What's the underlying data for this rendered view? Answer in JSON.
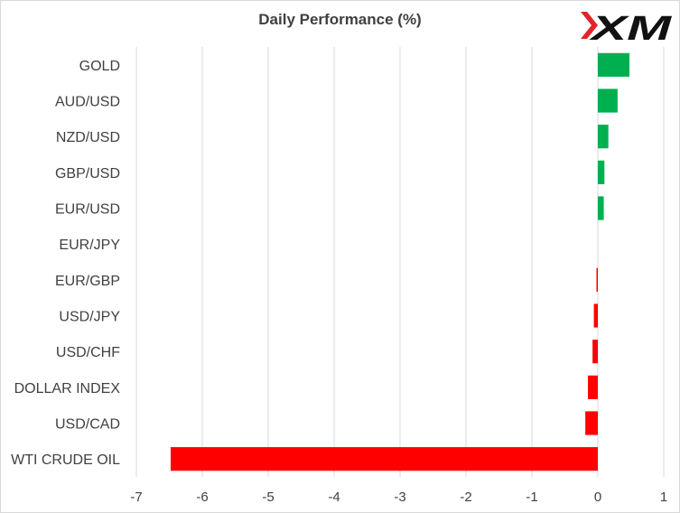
{
  "chart_data": {
    "type": "bar",
    "orientation": "horizontal",
    "title": "Daily Performance (%)",
    "categories": [
      "GOLD",
      "AUD/USD",
      "NZD/USD",
      "GBP/USD",
      "EUR/USD",
      "EUR/JPY",
      "EUR/GBP",
      "USD/JPY",
      "USD/CHF",
      "DOLLAR INDEX",
      "USD/CAD",
      "WTI CRUDE OIL"
    ],
    "values": [
      0.48,
      0.3,
      0.16,
      0.1,
      0.09,
      0.0,
      -0.02,
      -0.06,
      -0.08,
      -0.15,
      -0.19,
      -6.48
    ],
    "xlim": [
      -7,
      1
    ],
    "xticks": [
      "-7",
      "-6",
      "-5",
      "-4",
      "-3",
      "-2",
      "-1",
      "0",
      "1"
    ],
    "grid": "vertical",
    "colors": {
      "positive": "#00b050",
      "negative": "#ff0000",
      "grid": "#d9d9d9",
      "text": "#404040"
    }
  },
  "logo": {
    "text": "XM",
    "color": "#111111",
    "accent": "#e3242b"
  }
}
